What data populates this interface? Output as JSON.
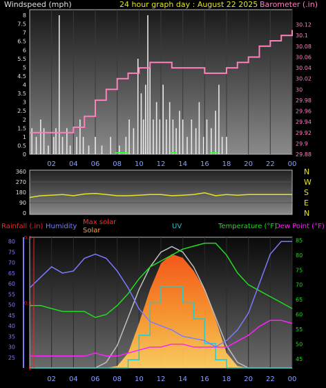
{
  "header": {
    "wind_title": "Windspeed (mph)",
    "graph_title": "24 hour graph day : August 22 2025",
    "baro_title": "Barometer (.in)"
  },
  "x_ticks": [
    "02",
    "04",
    "06",
    "08",
    "10",
    "12",
    "14",
    "16",
    "18",
    "20",
    "22",
    "00"
  ],
  "legend": {
    "rainfall": "Rainfall (.in)",
    "humidity": "Humidity",
    "max_solar": "Max solar",
    "solar": "Solar",
    "uv": "UV",
    "temperature": "Temperature (°F)",
    "dew_point": "Dew Point (°F)"
  },
  "colors": {
    "wind": "#e8e8e8",
    "gust_green": "#33ff33",
    "barometer": "#ff80c0",
    "direction": "#e6e620",
    "humidity": "#7b7bff",
    "temperature": "#22dd22",
    "dewpoint": "#ff22ff",
    "uv": "#22cccc",
    "solar": "#ff8a22",
    "max_solar": "#c0c0c0",
    "rain": "#ff2020"
  },
  "chart_data": [
    {
      "type": "bar",
      "title": "24 hour graph day : August 22 2025",
      "ylabel": "Windspeed (mph)",
      "y2label": "Barometer (.in)",
      "ylim": [
        0,
        8
      ],
      "y2lim": [
        29.88,
        30.14
      ],
      "y_ticks": [
        "0",
        "0.5",
        "1",
        "1.5",
        "2",
        "2.5",
        "3",
        "3.5",
        "4",
        "4.5",
        "5",
        "5.5",
        "6",
        "6.5",
        "7",
        "7.5",
        "8"
      ],
      "y2_ticks": [
        "29.88",
        "29.9",
        "29.92",
        "29.94",
        "29.96",
        "29.98",
        "30",
        "30.02",
        "30.04",
        "30.06",
        "30.08",
        "30.1",
        "30.12"
      ],
      "x": [
        0,
        1,
        2,
        3,
        4,
        5,
        6,
        7,
        8,
        9,
        10,
        11,
        12,
        13,
        14,
        15,
        16,
        17,
        18,
        19,
        20,
        21,
        22,
        23,
        24
      ],
      "barometer": [
        29.92,
        29.92,
        29.92,
        29.92,
        29.93,
        29.95,
        29.98,
        30.0,
        30.02,
        30.03,
        30.04,
        30.05,
        30.05,
        30.04,
        30.04,
        30.04,
        30.03,
        30.03,
        30.04,
        30.05,
        30.06,
        30.08,
        30.09,
        30.1,
        30.11
      ],
      "wind_bars": [
        {
          "x": 0.2,
          "v": 1.5
        },
        {
          "x": 0.6,
          "v": 1
        },
        {
          "x": 1.0,
          "v": 2
        },
        {
          "x": 1.3,
          "v": 1.5
        },
        {
          "x": 1.7,
          "v": 0.5
        },
        {
          "x": 2.2,
          "v": 1
        },
        {
          "x": 2.4,
          "v": 1.5
        },
        {
          "x": 2.7,
          "v": 8
        },
        {
          "x": 3.0,
          "v": 1
        },
        {
          "x": 3.4,
          "v": 1.5
        },
        {
          "x": 3.7,
          "v": 0.5
        },
        {
          "x": 4.3,
          "v": 1
        },
        {
          "x": 4.6,
          "v": 2
        },
        {
          "x": 4.9,
          "v": 1
        },
        {
          "x": 5.4,
          "v": 0.5
        },
        {
          "x": 6.0,
          "v": 1
        },
        {
          "x": 6.6,
          "v": 0.5
        },
        {
          "x": 7.4,
          "v": 1
        },
        {
          "x": 8.2,
          "v": 0.5
        },
        {
          "x": 8.8,
          "v": 1
        },
        {
          "x": 9.1,
          "v": 2
        },
        {
          "x": 9.5,
          "v": 1.5
        },
        {
          "x": 9.9,
          "v": 5.5
        },
        {
          "x": 10.2,
          "v": 3.5
        },
        {
          "x": 10.4,
          "v": 2
        },
        {
          "x": 10.6,
          "v": 4
        },
        {
          "x": 10.8,
          "v": 8
        },
        {
          "x": 11.0,
          "v": 5
        },
        {
          "x": 11.3,
          "v": 2
        },
        {
          "x": 11.6,
          "v": 3
        },
        {
          "x": 11.9,
          "v": 2
        },
        {
          "x": 12.2,
          "v": 4
        },
        {
          "x": 12.5,
          "v": 2
        },
        {
          "x": 12.8,
          "v": 3
        },
        {
          "x": 13.1,
          "v": 2
        },
        {
          "x": 13.4,
          "v": 1.5
        },
        {
          "x": 13.7,
          "v": 2.5
        },
        {
          "x": 14.0,
          "v": 2
        },
        {
          "x": 14.4,
          "v": 1
        },
        {
          "x": 14.8,
          "v": 2
        },
        {
          "x": 15.2,
          "v": 1.5
        },
        {
          "x": 15.5,
          "v": 3
        },
        {
          "x": 15.9,
          "v": 1
        },
        {
          "x": 16.2,
          "v": 2
        },
        {
          "x": 16.6,
          "v": 1.5
        },
        {
          "x": 17.0,
          "v": 2.5
        },
        {
          "x": 17.3,
          "v": 4
        },
        {
          "x": 17.6,
          "v": 1
        },
        {
          "x": 18.0,
          "v": 1
        }
      ],
      "calm_segments": [
        [
          7.8,
          9.0
        ],
        [
          12.9,
          13.4
        ],
        [
          16.5,
          17.2
        ]
      ]
    },
    {
      "type": "line",
      "ylabel_ticks": [
        "N",
        "W",
        "S",
        "E",
        "N"
      ],
      "ylim": [
        0,
        360
      ],
      "y_ticks": [
        "360",
        "270",
        "180",
        "90",
        "0"
      ],
      "x": [
        0,
        1,
        2,
        3,
        4,
        5,
        6,
        7,
        8,
        9,
        10,
        11,
        12,
        13,
        14,
        15,
        16,
        17,
        18,
        19,
        20,
        21,
        22,
        23,
        24
      ],
      "direction": [
        135,
        150,
        155,
        160,
        150,
        165,
        170,
        160,
        150,
        150,
        155,
        160,
        160,
        150,
        155,
        160,
        175,
        150,
        160,
        155,
        160,
        160,
        160,
        160,
        160
      ]
    },
    {
      "type": "line",
      "rain_ticks": [
        "0",
        "0.1",
        "0.2"
      ],
      "humidity_ticks": [
        "25",
        "30",
        "35",
        "40",
        "45",
        "50",
        "55",
        "60",
        "65",
        "70",
        "75",
        "80"
      ],
      "temp_ticks": [
        "45",
        "50",
        "55",
        "60",
        "65",
        "70",
        "75",
        "80",
        "85"
      ],
      "humidity_lim": [
        20,
        82
      ],
      "temp_lim": [
        42,
        86
      ],
      "x": [
        0,
        1,
        2,
        3,
        4,
        5,
        6,
        7,
        8,
        9,
        10,
        11,
        12,
        13,
        14,
        15,
        16,
        17,
        18,
        19,
        20,
        21,
        22,
        23,
        24
      ],
      "humidity": [
        58,
        63,
        68,
        65,
        66,
        72,
        74,
        72,
        66,
        58,
        48,
        42,
        40,
        38,
        35,
        34,
        33,
        30,
        33,
        38,
        46,
        60,
        74,
        80,
        80
      ],
      "temperature": [
        63,
        63,
        62,
        61,
        61,
        61,
        59,
        60,
        63,
        67,
        72,
        76,
        78,
        80,
        82,
        83,
        84,
        84,
        80,
        74,
        70,
        68,
        66,
        64,
        62
      ],
      "dewpoint": [
        46,
        46,
        46,
        46,
        46,
        46,
        47,
        46,
        46,
        47,
        48,
        49,
        49,
        50,
        50,
        49,
        49,
        49,
        49,
        51,
        53,
        56,
        58,
        58,
        57
      ],
      "uv": [
        0,
        0,
        0,
        0,
        0,
        0,
        0,
        0,
        0,
        0.5,
        2,
        4,
        5,
        5,
        4,
        3,
        1.5,
        0.5,
        0,
        0,
        0,
        0,
        0,
        0,
        0
      ],
      "solar": [
        0,
        0,
        0,
        0,
        0,
        0,
        0,
        0,
        10,
        80,
        240,
        420,
        560,
        610,
        590,
        520,
        420,
        260,
        80,
        10,
        0,
        0,
        0,
        0,
        0
      ],
      "max_solar": [
        0,
        0,
        0,
        0,
        0,
        0,
        0,
        30,
        120,
        270,
        420,
        540,
        620,
        650,
        620,
        540,
        420,
        270,
        120,
        30,
        0,
        0,
        0,
        0,
        0
      ],
      "rain": [
        0,
        0,
        0,
        0,
        0,
        0,
        0,
        0,
        0,
        0,
        0,
        0,
        0,
        0,
        0,
        0,
        0,
        0,
        0,
        0,
        0,
        0,
        0,
        0,
        0
      ]
    }
  ]
}
